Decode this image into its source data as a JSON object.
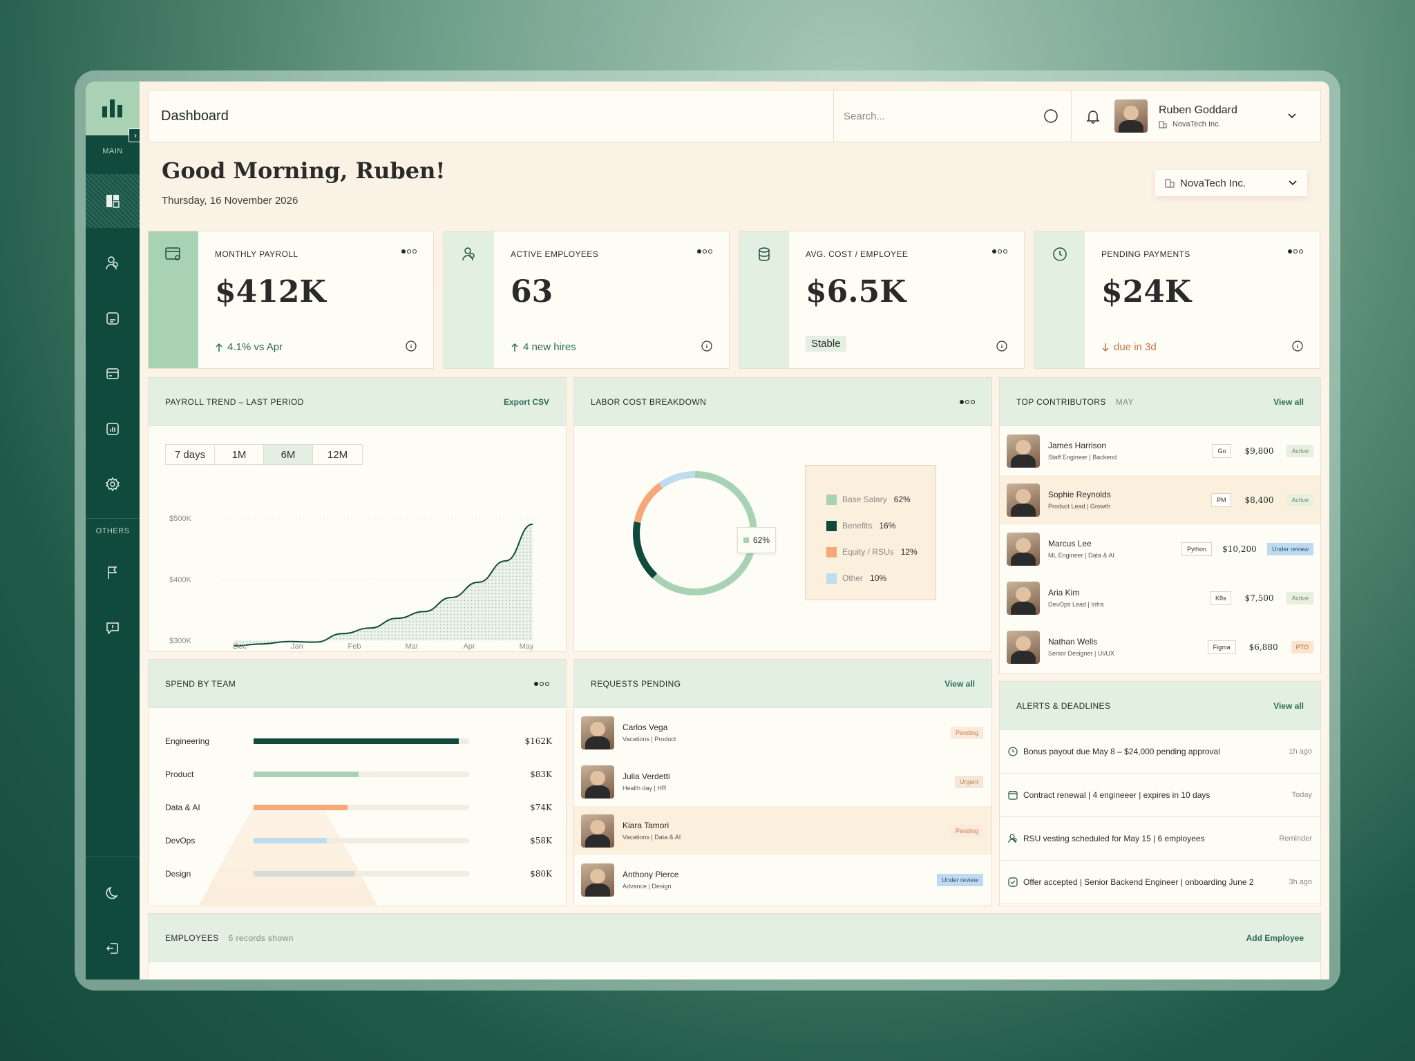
{
  "sidebar": {
    "main_label": "MAIN",
    "others_label": "OTHERS",
    "toggle": "›"
  },
  "topbar": {
    "title": "Dashboard",
    "search_placeholder": "Search...",
    "user_name": "Ruben Goddard",
    "user_company": "NovaTech Inc."
  },
  "header": {
    "greeting": "Good Morning, Ruben!",
    "date": "Thursday, 16 November 2026",
    "org_select": "NovaTech Inc."
  },
  "kpis": [
    {
      "label": "MONTHLY PAYROLL",
      "value": "$412K",
      "sub": "4.1% vs Apr",
      "sub_icon": "arrow-up-icon"
    },
    {
      "label": "ACTIVE EMPLOYEES",
      "value": "63",
      "sub": "4 new hires",
      "sub_icon": "arrow-up-icon"
    },
    {
      "label": "AVG. COST / EMPLOYEE",
      "value": "$6.5K",
      "sub": "Stable"
    },
    {
      "label": "PENDING PAYMENTS",
      "value": "$24K",
      "sub": "due in 3d",
      "sub_icon": "arrow-down-icon"
    }
  ],
  "payroll_trend": {
    "title": "PAYROLL TREND – LAST PERIOD",
    "action": "Export CSV",
    "ranges": [
      "7 days",
      "1M",
      "6M",
      "12M"
    ],
    "selected_range": "6M"
  },
  "labor_cost": {
    "title": "LABOR COST BREAKDOWN",
    "callout": "62%"
  },
  "top_contributors": {
    "title": "TOP CONTRIBUTORS",
    "period": "MAY",
    "action": "View all",
    "people": [
      {
        "name": "James Harrison",
        "role": "Staff Engineer | Backend",
        "tag": "Go",
        "amount": "$9,800",
        "status": "Active"
      },
      {
        "name": "Sophie Reynolds",
        "role": "Product Lead | Growth",
        "tag": "PM",
        "amount": "$8,400",
        "status": "Active"
      },
      {
        "name": "Marcus Lee",
        "role": "ML Engineer | Data & AI",
        "tag": "Python",
        "amount": "$10,200",
        "status": "Under review"
      },
      {
        "name": "Aria Kim",
        "role": "DevOps Lead | Infra",
        "tag": "K8s",
        "amount": "$7,500",
        "status": "Active"
      },
      {
        "name": "Nathan Wells",
        "role": "Senior Designer | UI/UX",
        "tag": "Figma",
        "amount": "$6,880",
        "status": "PTO"
      }
    ]
  },
  "spend_by_team": {
    "title": "SPEND BY TEAM"
  },
  "requests": {
    "title": "REQUESTS PENDING",
    "action": "View all",
    "items": [
      {
        "name": "Carlos Vega",
        "detail": "Vacations | Product",
        "status": "Pending"
      },
      {
        "name": "Julia Verdetti",
        "detail": "Health day | HR",
        "status": "Urgent"
      },
      {
        "name": "Kiara Tamori",
        "detail": "Vacations | Data & AI",
        "status": "Pending"
      },
      {
        "name": "Anthony Pierce",
        "detail": "Advance | Design",
        "status": "Under review"
      }
    ]
  },
  "alerts": {
    "title": "ALERTS & DEADLINES",
    "action": "View all",
    "items": [
      {
        "text": "Bonus payout due May 8 – $24,000 pending approval",
        "time": "1h ago",
        "icon": "clock-icon"
      },
      {
        "text": "Contract renewal | 4 engineeer | expires in 10 days",
        "time": "Today",
        "icon": "calendar-icon"
      },
      {
        "text": "RSU vesting scheduled for May 15 | 6 employees",
        "time": "Reminder",
        "icon": "users-icon"
      },
      {
        "text": "Offer accepted | Senior Backend Engineer | onboarding June 2",
        "time": "3h ago",
        "icon": "check-icon"
      }
    ]
  },
  "employees": {
    "title": "EMPLOYEES",
    "count": "6 records shown",
    "action": "Add Employee"
  },
  "colors": {
    "sidebar": "#0f4a3d",
    "accent_mint": "#a9d2b4",
    "dark_green": "#0f4a3d",
    "orange": "#f5a878",
    "light_blue": "#bfdcee",
    "grey": "#d8dcd6"
  },
  "chart_data": [
    {
      "type": "area",
      "title": "PAYROLL TREND – LAST PERIOD",
      "x_tick_labels": [
        "Dec",
        "Jan",
        "Feb",
        "Mar",
        "Apr",
        "May"
      ],
      "y_tick_labels": [
        "$500K",
        "$400K",
        "$300K"
      ],
      "ylim": [
        300,
        500
      ],
      "y_unit": "$K",
      "series": [
        {
          "values": [
            291,
            294,
            298,
            297,
            311,
            320,
            336,
            347,
            370,
            395,
            430,
            490
          ]
        }
      ]
    },
    {
      "type": "pie",
      "title": "LABOR COST BREAKDOWN",
      "categories": [
        "Base Salary",
        "Benefits",
        "Equity / RSUs",
        "Other"
      ],
      "values": [
        62,
        16,
        12,
        10
      ],
      "labels": [
        "62%",
        "16%",
        "12%",
        "10%"
      ],
      "colors": [
        "#a9d2b4",
        "#0f4a3d",
        "#f5a878",
        "#bfdcee"
      ]
    },
    {
      "type": "bar",
      "title": "SPEND BY TEAM",
      "categories": [
        "Engineering",
        "Product",
        "Data & AI",
        "DevOps",
        "Design"
      ],
      "values": [
        162,
        83,
        74,
        58,
        80
      ],
      "labels": [
        "$162K",
        "$83K",
        "$74K",
        "$58K",
        "$80K"
      ],
      "colors": [
        "#0f4a3d",
        "#a9d2b4",
        "#f5a878",
        "#bfdcee",
        "#d8dcd6"
      ]
    }
  ]
}
